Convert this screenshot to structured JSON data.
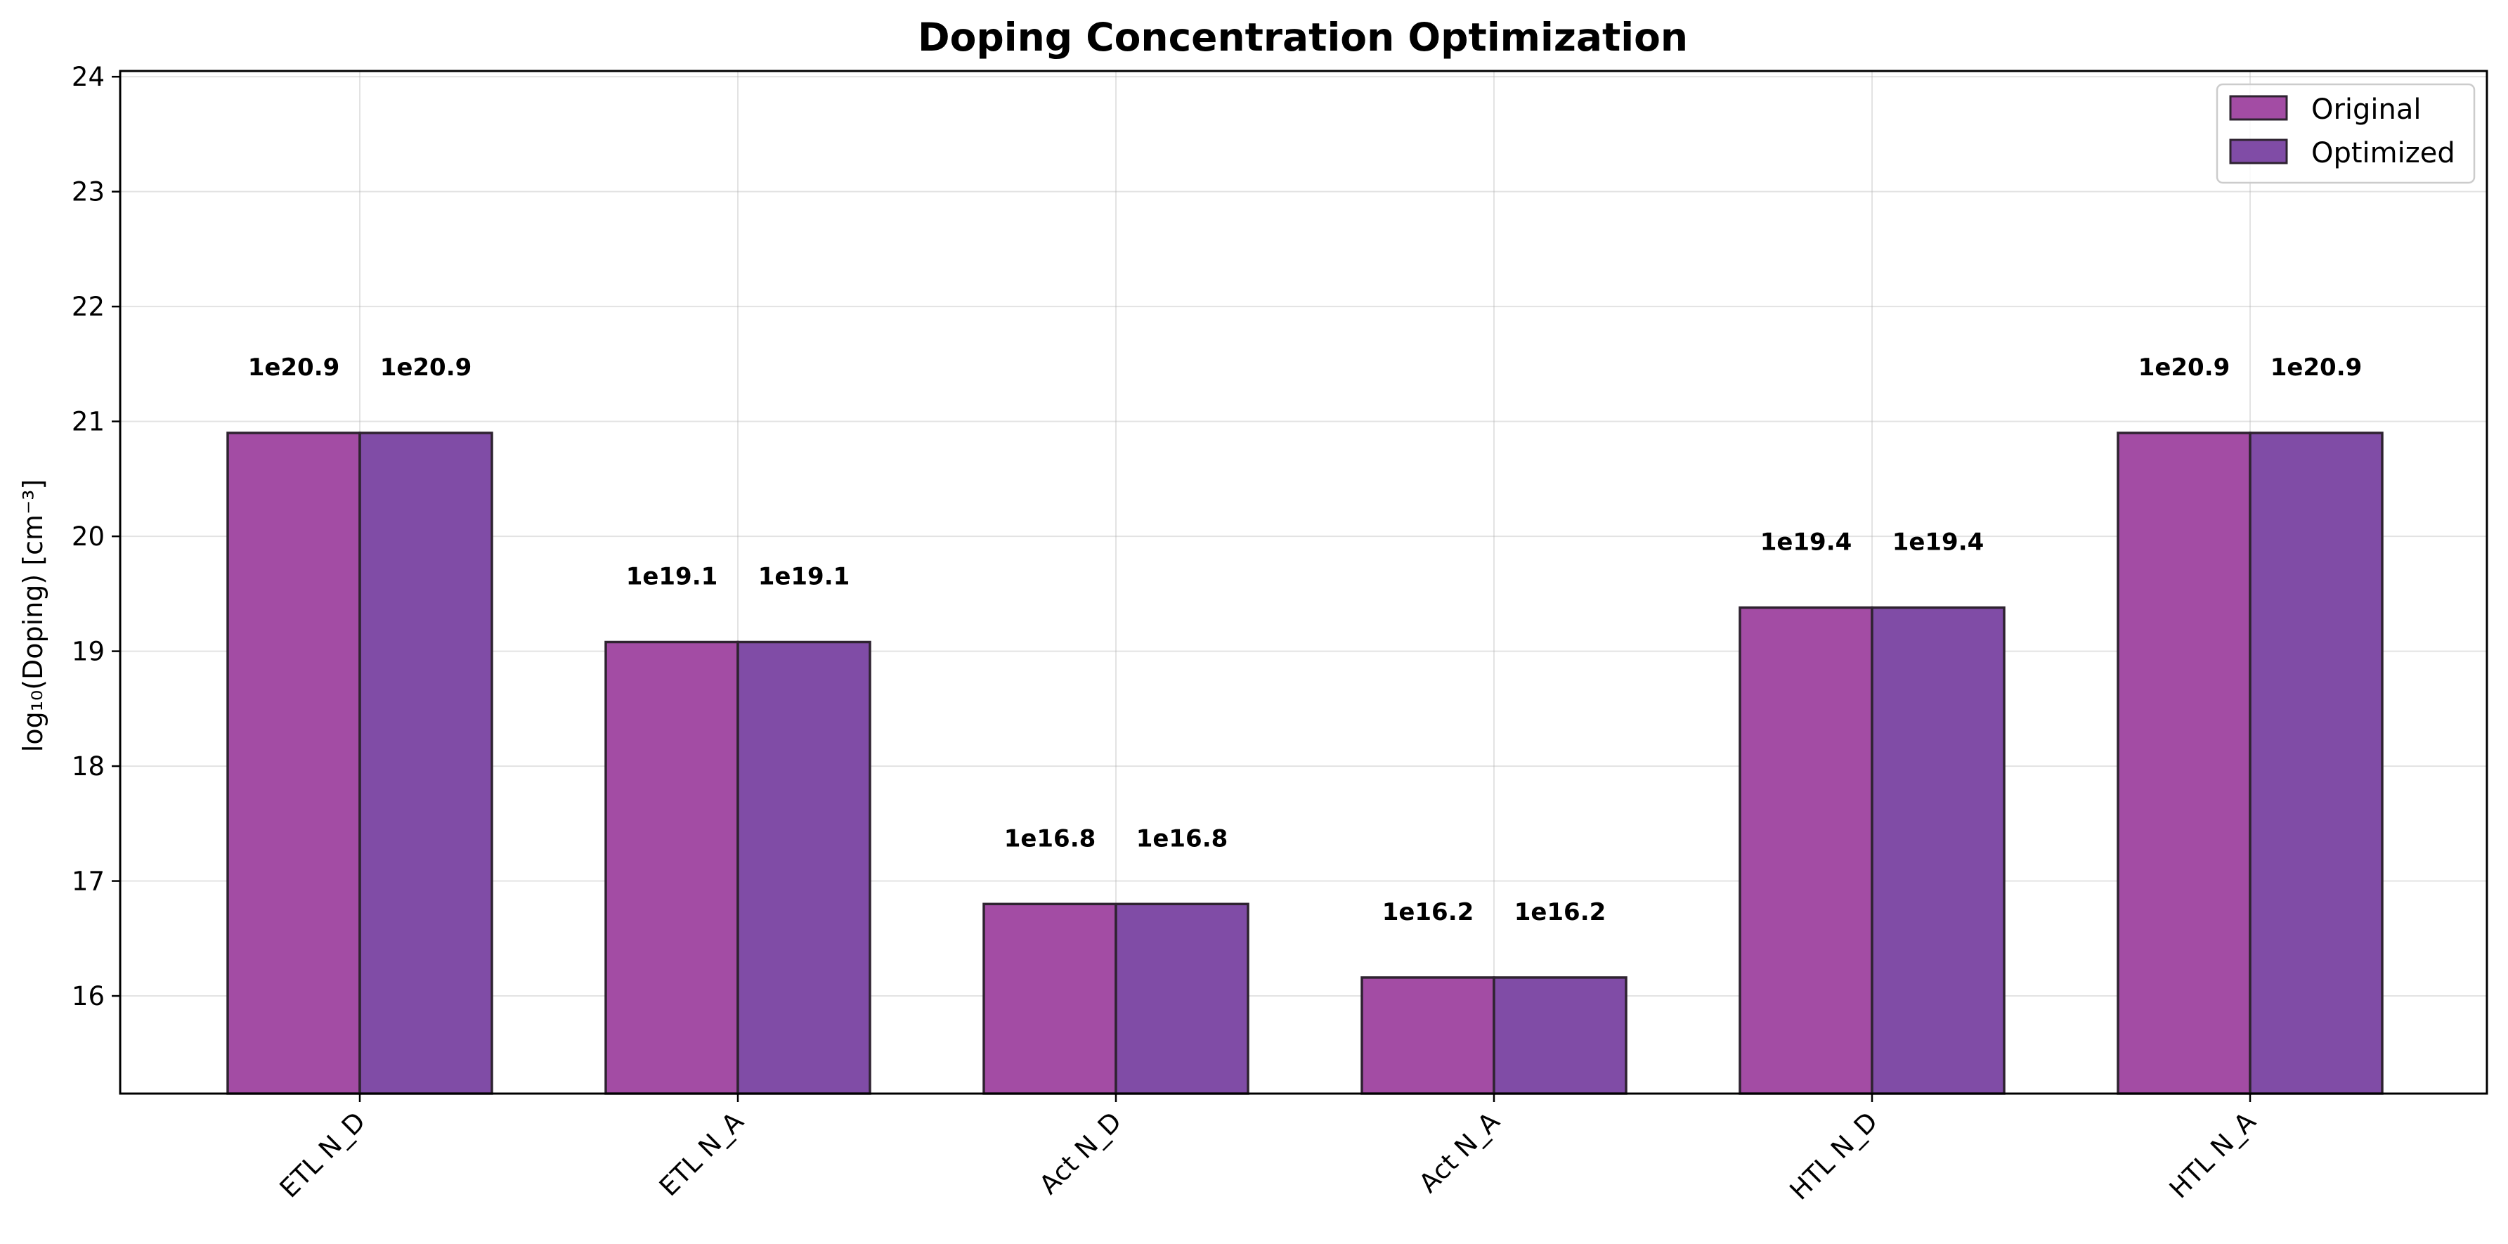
{
  "chart_data": {
    "type": "bar",
    "title": "Doping Concentration Optimization",
    "xlabel": "",
    "ylabel": "log₁₀(Doping) [cm⁻³]",
    "categories": [
      "ETL N_D",
      "ETL N_A",
      "Act N_D",
      "Act N_A",
      "HTL N_D",
      "HTL N_A"
    ],
    "series": [
      {
        "name": "Original",
        "values": [
          20.9,
          19.08,
          16.8,
          16.16,
          19.38,
          20.9
        ],
        "labels": [
          "1e20.9",
          "1e19.1",
          "1e16.8",
          "1e16.2",
          "1e19.4",
          "1e20.9"
        ],
        "color": "#a34ca4"
      },
      {
        "name": "Optimized",
        "values": [
          20.9,
          19.08,
          16.8,
          16.16,
          19.38,
          20.9
        ],
        "labels": [
          "1e20.9",
          "1e19.1",
          "1e16.8",
          "1e16.2",
          "1e19.4",
          "1e20.9"
        ],
        "color": "#804ca6"
      }
    ],
    "ylim": [
      15.15,
      24.05
    ],
    "yticks": [
      16,
      17,
      18,
      19,
      20,
      21,
      22,
      23,
      24
    ],
    "grid": true,
    "legend_position": "top-right",
    "edge_color": "#2e2330"
  }
}
